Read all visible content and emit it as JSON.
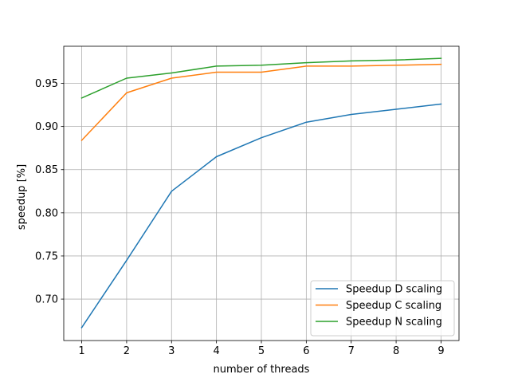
{
  "chart_data": {
    "type": "line",
    "title": "",
    "xlabel": "number of threads",
    "ylabel": "speedup [%]",
    "x": [
      1,
      2,
      3,
      4,
      5,
      6,
      7,
      8,
      9
    ],
    "xlim": [
      0.6,
      9.4
    ],
    "ylim": [
      0.652,
      0.993
    ],
    "xticks": [
      1,
      2,
      3,
      4,
      5,
      6,
      7,
      8,
      9
    ],
    "yticks": [
      0.7,
      0.75,
      0.8,
      0.85,
      0.9,
      0.95
    ],
    "ytick_labels": [
      "0.70",
      "0.75",
      "0.80",
      "0.85",
      "0.90",
      "0.95"
    ],
    "grid": true,
    "legend_position": "lower-right",
    "series": [
      {
        "name": "Speedup D scaling",
        "color": "#1f77b4",
        "values": [
          0.667,
          0.745,
          0.825,
          0.865,
          0.887,
          0.905,
          0.914,
          0.92,
          0.926
        ]
      },
      {
        "name": "Speedup C scaling",
        "color": "#ff7f0e",
        "values": [
          0.884,
          0.939,
          0.956,
          0.963,
          0.963,
          0.97,
          0.97,
          0.971,
          0.972
        ]
      },
      {
        "name": "Speedup N scaling",
        "color": "#2ca02c",
        "values": [
          0.933,
          0.956,
          0.962,
          0.97,
          0.971,
          0.974,
          0.976,
          0.977,
          0.979
        ]
      }
    ]
  }
}
